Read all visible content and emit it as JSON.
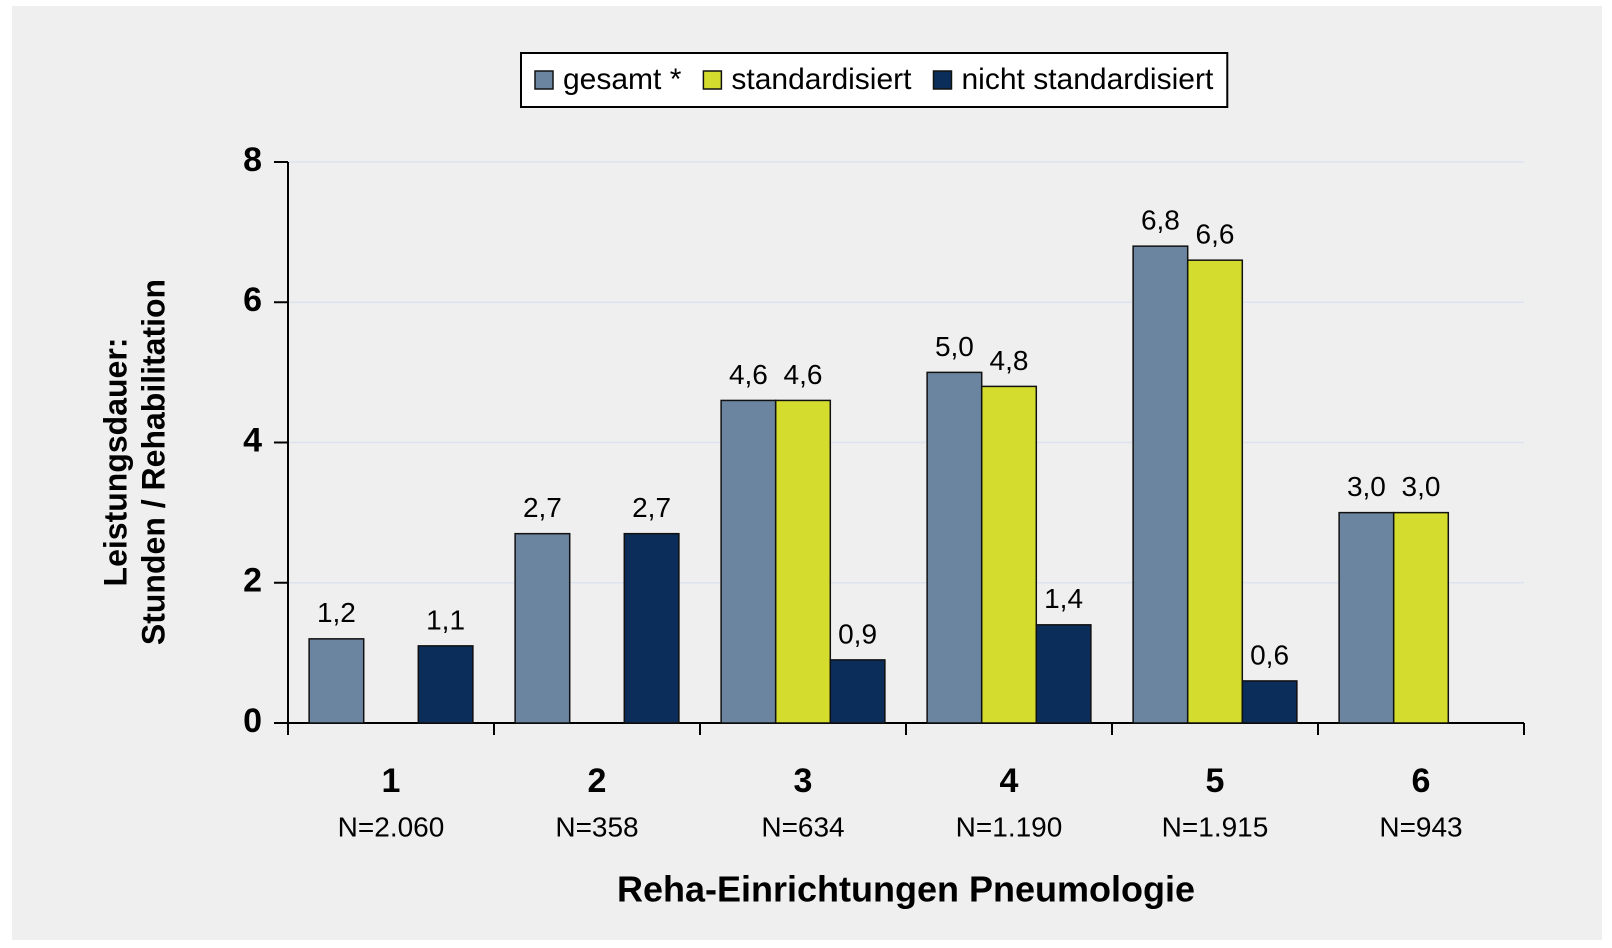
{
  "chart_data": {
    "type": "bar",
    "xlabel": "Reha-Einrichtungen Pneumologie",
    "ylabel_lines": [
      "Leistungsdauer:",
      "Stunden / Rehabilitation"
    ],
    "categories": [
      "1",
      "2",
      "3",
      "4",
      "5",
      "6"
    ],
    "category_sublabels": [
      "N=2.060",
      "N=358",
      "N=634",
      "N=1.190",
      "N=1.915",
      "N=943"
    ],
    "series": [
      {
        "name": "gesamt *",
        "color": "#6b84a0",
        "values": [
          1.2,
          2.7,
          4.6,
          5.0,
          6.8,
          3.0
        ],
        "value_labels": [
          "1,2",
          "2,7",
          "4,6",
          "5,0",
          "6,8",
          "3,0"
        ]
      },
      {
        "name": "standardisiert",
        "color": "#d4dd2e",
        "values": [
          null,
          null,
          4.6,
          4.8,
          6.6,
          3.0
        ],
        "value_labels": [
          null,
          null,
          "4,6",
          "4,8",
          "6,6",
          "3,0"
        ]
      },
      {
        "name": "nicht standardisiert",
        "color": "#0a2d5a",
        "values": [
          1.1,
          2.7,
          0.9,
          1.4,
          0.6,
          null
        ],
        "value_labels": [
          "1,1",
          "2,7",
          "0,9",
          "1,4",
          "0,6",
          null
        ]
      }
    ],
    "ylim": [
      0,
      8
    ],
    "yticks": [
      0,
      2,
      4,
      6,
      8
    ],
    "grid": true,
    "legend": "top"
  }
}
